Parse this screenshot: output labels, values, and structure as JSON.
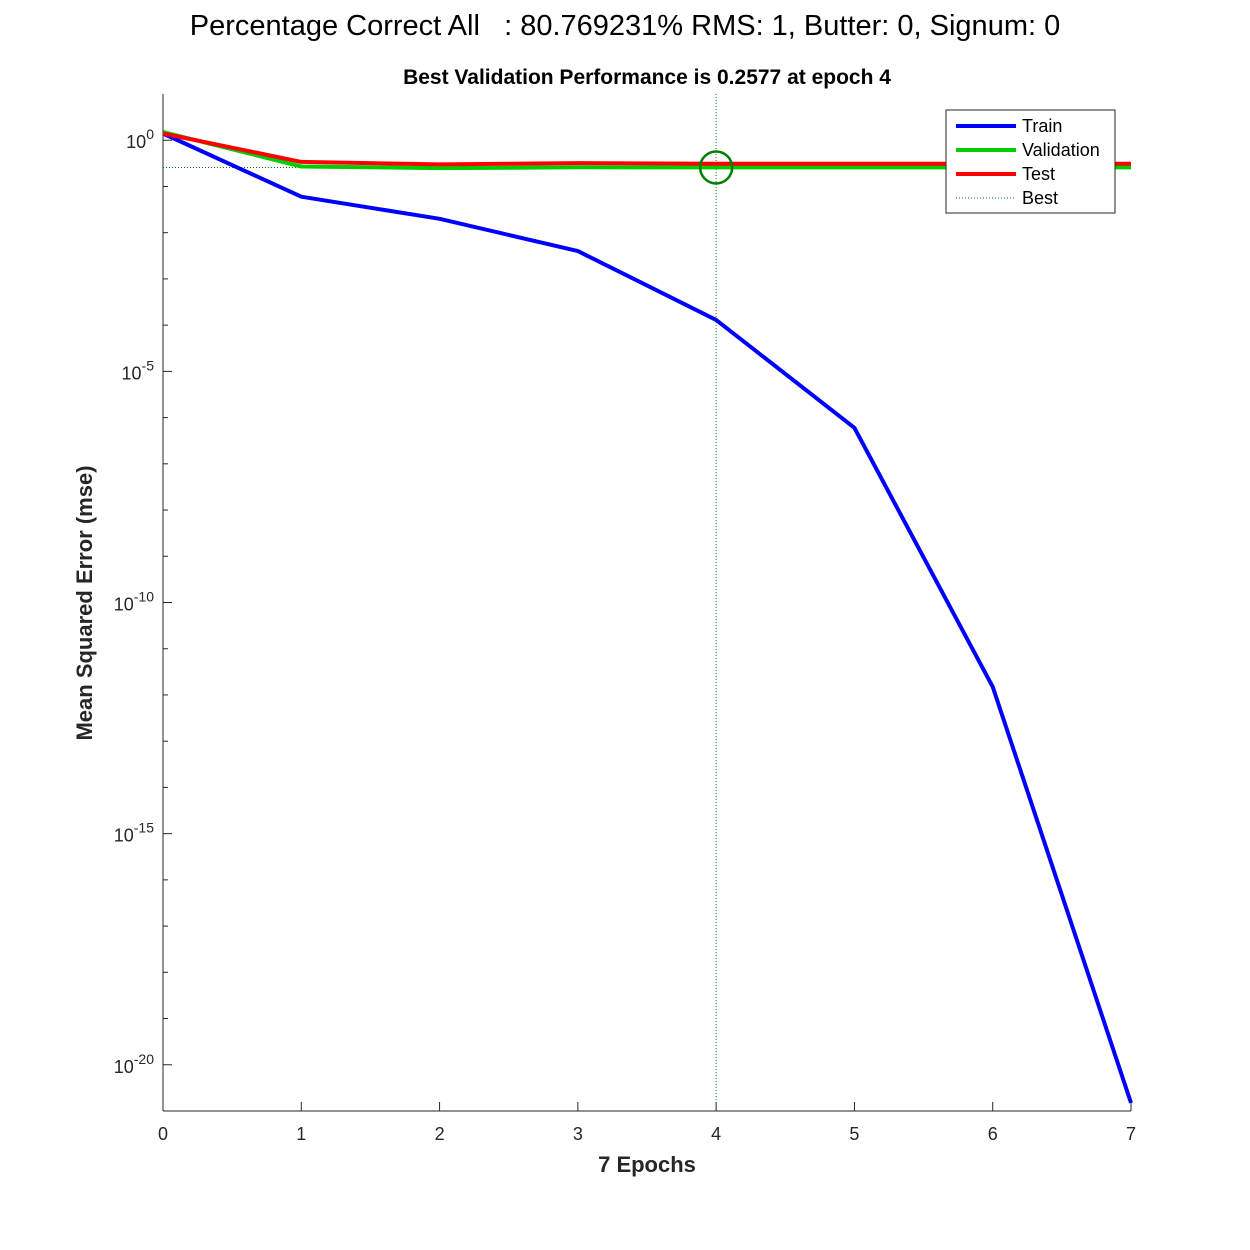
{
  "figure": {
    "title": "Percentage Correct All   : 80.769231% RMS: 1, Butter: 0, Signum: 0"
  },
  "chart_data": {
    "type": "line",
    "title": "Best Validation Performance is 0.2577 at epoch 4",
    "xlabel": "7 Epochs",
    "ylabel": "Mean Squared Error  (mse)",
    "xlim": [
      0,
      7
    ],
    "ylim": [
      1e-21,
      10
    ],
    "yscale": "log",
    "x_ticks": [
      0,
      1,
      2,
      3,
      4,
      5,
      6,
      7
    ],
    "y_ticks": [
      {
        "base": "10",
        "exp": "0",
        "value": 1
      },
      {
        "base": "10",
        "exp": "-5",
        "value": 1e-05
      },
      {
        "base": "10",
        "exp": "-10",
        "value": 1e-10
      },
      {
        "base": "10",
        "exp": "-15",
        "value": 1e-15
      },
      {
        "base": "10",
        "exp": "-20",
        "value": 1e-20
      }
    ],
    "x": [
      0,
      1,
      2,
      3,
      4,
      5,
      6,
      7
    ],
    "series": [
      {
        "name": "Train",
        "color": "#0000ff",
        "style": "solid",
        "values": [
          1.4,
          0.06,
          0.02,
          0.004,
          0.00013,
          6e-07,
          1.5e-12,
          1.5e-21
        ]
      },
      {
        "name": "Validation",
        "color": "#00cc00",
        "style": "solid",
        "values": [
          1.5,
          0.27,
          0.25,
          0.26,
          0.2577,
          0.2577,
          0.2577,
          0.2577
        ]
      },
      {
        "name": "Test",
        "color": "#ff0000",
        "style": "solid",
        "values": [
          1.4,
          0.34,
          0.3,
          0.32,
          0.31,
          0.31,
          0.31,
          0.31
        ]
      },
      {
        "name": "Best",
        "color": "#008000",
        "style": "dotted"
      }
    ],
    "best": {
      "epoch": 4,
      "value": 0.2577,
      "color": "#008000"
    },
    "legend_position": "top-right",
    "grid": false
  }
}
